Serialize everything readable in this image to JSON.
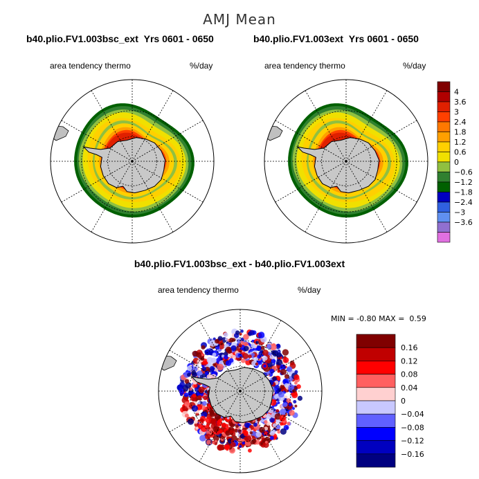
{
  "figure": {
    "title": "AMJ Mean",
    "panel_left": {
      "case": "b40.plio.FV1.003bsc_ext",
      "years": "Yrs 0601 - 0650",
      "variable": "area tendency thermo",
      "units": "%/day"
    },
    "panel_right": {
      "case": "b40.plio.FV1.003ext",
      "years": "Yrs 0601 - 0650",
      "variable": "area tendency thermo",
      "units": "%/day"
    },
    "panel_diff": {
      "title": "b40.plio.FV1.003bsc_ext - b40.plio.FV1.003ext",
      "variable": "area tendency thermo",
      "units": "%/day",
      "min_label": "MIN =",
      "min_value": "-0.80",
      "max_label": "MAX =",
      "max_value": "0.59"
    }
  },
  "chart_data": [
    {
      "type": "heatmap",
      "projection": "south-polar-stereographic",
      "title": "b40.plio.FV1.003bsc_ext  Yrs 0601 - 0650",
      "variable": "area tendency thermo",
      "units": "%/day",
      "colorbar": {
        "labels": [
          "4",
          "3.6",
          "3",
          "2.4",
          "1.8",
          "1.2",
          "0.6",
          "0",
          "−0.6",
          "−1.2",
          "−1.8",
          "−2.4",
          "−3",
          "−3.6"
        ],
        "colors": [
          "#800000",
          "#b00000",
          "#e02000",
          "#ff4000",
          "#ff7800",
          "#ffa000",
          "#ffd000",
          "#f0e000",
          "#90c040",
          "#308030",
          "#006000",
          "#0000c0",
          "#3060e0",
          "#6090f0",
          "#9070d0",
          "#e070e0"
        ]
      }
    },
    {
      "type": "heatmap",
      "projection": "south-polar-stereographic",
      "title": "b40.plio.FV1.003ext  Yrs 0601 - 0650",
      "variable": "area tendency thermo",
      "units": "%/day"
    },
    {
      "type": "heatmap",
      "projection": "south-polar-stereographic",
      "title": "b40.plio.FV1.003bsc_ext - b40.plio.FV1.003ext",
      "variable": "area tendency thermo",
      "units": "%/day",
      "min": -0.8,
      "max": 0.59,
      "colorbar": {
        "labels": [
          "0.16",
          "0.12",
          "0.08",
          "0.04",
          "0",
          "−0.04",
          "−0.08",
          "−0.12",
          "−0.16"
        ],
        "colors": [
          "#800000",
          "#c00000",
          "#ff0000",
          "#ff6060",
          "#ffd0d0",
          "#c8c8ff",
          "#6060ff",
          "#0000ff",
          "#0000c0",
          "#000080"
        ]
      }
    }
  ]
}
